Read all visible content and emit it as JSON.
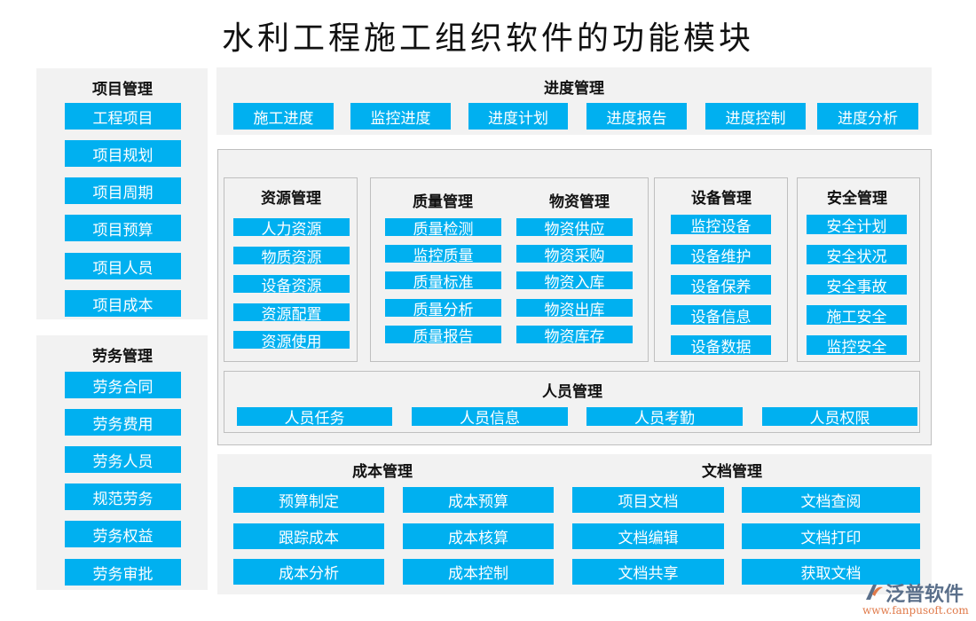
{
  "title": "水利工程施工组织软件的功能模块",
  "colors": {
    "button": "#00B0F0",
    "panel": "#F2F2F2",
    "border": "#BFBFBF"
  },
  "project": {
    "title": "项目管理",
    "items": [
      "工程项目",
      "项目规划",
      "项目周期",
      "项目预算",
      "项目人员",
      "项目成本"
    ]
  },
  "labor": {
    "title": "劳务管理",
    "items": [
      "劳务合同",
      "劳务费用",
      "劳务人员",
      "规范劳务",
      "劳务权益",
      "劳务审批"
    ]
  },
  "progress": {
    "title": "进度管理",
    "items": [
      "施工进度",
      "监控进度",
      "进度计划",
      "进度报告",
      "进度控制",
      "进度分析"
    ]
  },
  "resource": {
    "title": "资源管理",
    "items": [
      "人力资源",
      "物质资源",
      "设备资源",
      "资源配置",
      "资源使用"
    ]
  },
  "quality": {
    "title": "质量管理",
    "items": [
      "质量检测",
      "监控质量",
      "质量标准",
      "质量分析",
      "质量报告"
    ]
  },
  "material": {
    "title": "物资管理",
    "items": [
      "物资供应",
      "物资采购",
      "物资入库",
      "物资出库",
      "物资库存"
    ]
  },
  "equipment": {
    "title": "设备管理",
    "items": [
      "监控设备",
      "设备维护",
      "设备保养",
      "设备信息",
      "设备数据"
    ]
  },
  "safety": {
    "title": "安全管理",
    "items": [
      "安全计划",
      "安全状况",
      "安全事故",
      "施工安全",
      "监控安全"
    ]
  },
  "personnel": {
    "title": "人员管理",
    "items": [
      "人员任务",
      "人员信息",
      "人员考勤",
      "人员权限"
    ]
  },
  "cost": {
    "title": "成本管理",
    "items": [
      "预算制定",
      "成本预算",
      "跟踪成本",
      "成本核算",
      "成本分析",
      "成本控制"
    ]
  },
  "docs": {
    "title": "文档管理",
    "items": [
      "项目文档",
      "文档查阅",
      "文档编辑",
      "文档打印",
      "文档共享",
      "获取文档"
    ]
  },
  "logo": {
    "name": "泛普软件",
    "url": "www.fanpusoft.com"
  }
}
